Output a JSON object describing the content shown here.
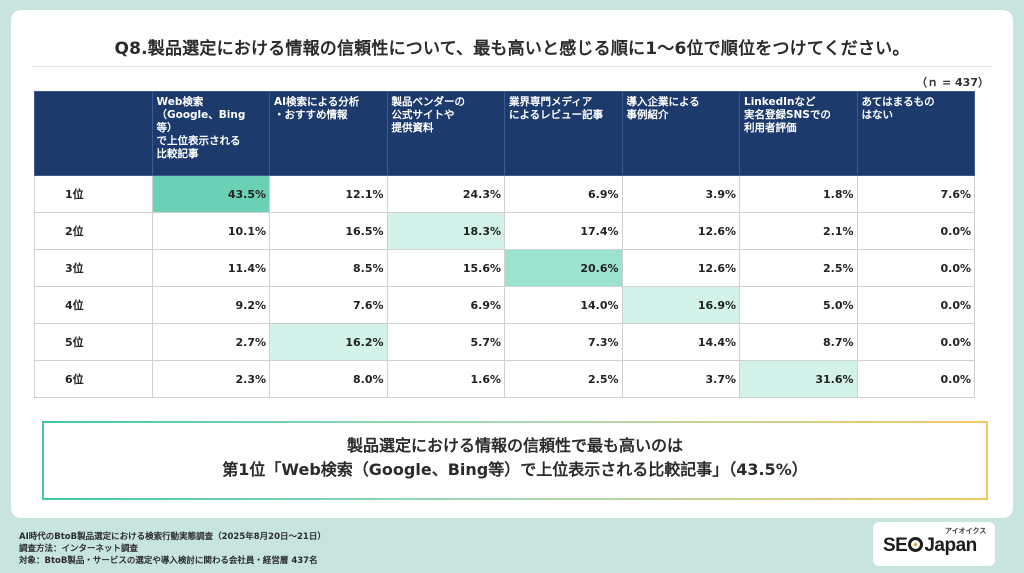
{
  "title": "Q8.製品選定における情報の信頼性について、最も高いと感じる順に1〜6位で順位をつけてください。",
  "n_label": "（ｎ = 437）",
  "chart_data": {
    "type": "table",
    "columns": [
      "",
      "Web検索\n（Google、Bing\n等）\nで上位表示される\n比較記事",
      "AI検索による分析\n・おすすめ情報",
      "製品ベンダーの\n公式サイトや\n提供資料",
      "業界専門メディア\nによるレビュー記事",
      "導入企業による\n事例紹介",
      "LinkedInなど\n実名登録SNSでの\n利用者評価",
      "あてはまるもの\nはない"
    ],
    "rows": [
      {
        "label": "1位",
        "cells": [
          "43.5%",
          "12.1%",
          "24.3%",
          "6.9%",
          "3.9%",
          "1.8%",
          "7.6%"
        ],
        "highlight": 0
      },
      {
        "label": "2位",
        "cells": [
          "10.1%",
          "16.5%",
          "18.3%",
          "17.4%",
          "12.6%",
          "2.1%",
          "0.0%"
        ],
        "highlight": 2
      },
      {
        "label": "3位",
        "cells": [
          "11.4%",
          "8.5%",
          "15.6%",
          "20.6%",
          "12.6%",
          "2.5%",
          "0.0%"
        ],
        "highlight": 3
      },
      {
        "label": "4位",
        "cells": [
          "9.2%",
          "7.6%",
          "6.9%",
          "14.0%",
          "16.9%",
          "5.0%",
          "0.0%"
        ],
        "highlight": 4
      },
      {
        "label": "5位",
        "cells": [
          "2.7%",
          "16.2%",
          "5.7%",
          "7.3%",
          "14.4%",
          "8.7%",
          "0.0%"
        ],
        "highlight": 1
      },
      {
        "label": "6位",
        "cells": [
          "2.3%",
          "8.0%",
          "1.6%",
          "2.5%",
          "3.7%",
          "31.6%",
          "0.0%"
        ],
        "highlight": 5
      }
    ],
    "colors": {
      "header_bg": "#1d3a6c",
      "highlight_strong": "#6bd1b4",
      "highlight_medium": "#9ce3cf",
      "highlight_light": "#d2f2ea"
    }
  },
  "summary": {
    "line1": "製品選定における情報の信頼性で最も高いのは",
    "line2": "第1位「Web検索（Google、Bing等）で上位表示される比較記事」（43.5%）"
  },
  "footer": {
    "line1": "AI時代のBtoB製品選定における検索行動実態調査（2025年8月20日〜21日）",
    "line2": "調査方法：インターネット調査",
    "line3": "対象：BtoB製品・サービスの選定や導入検討に関わる会社員・経営層 437名"
  },
  "logo": {
    "left": "SE",
    "right": "Japan",
    "ruby": "アイオイクス"
  }
}
